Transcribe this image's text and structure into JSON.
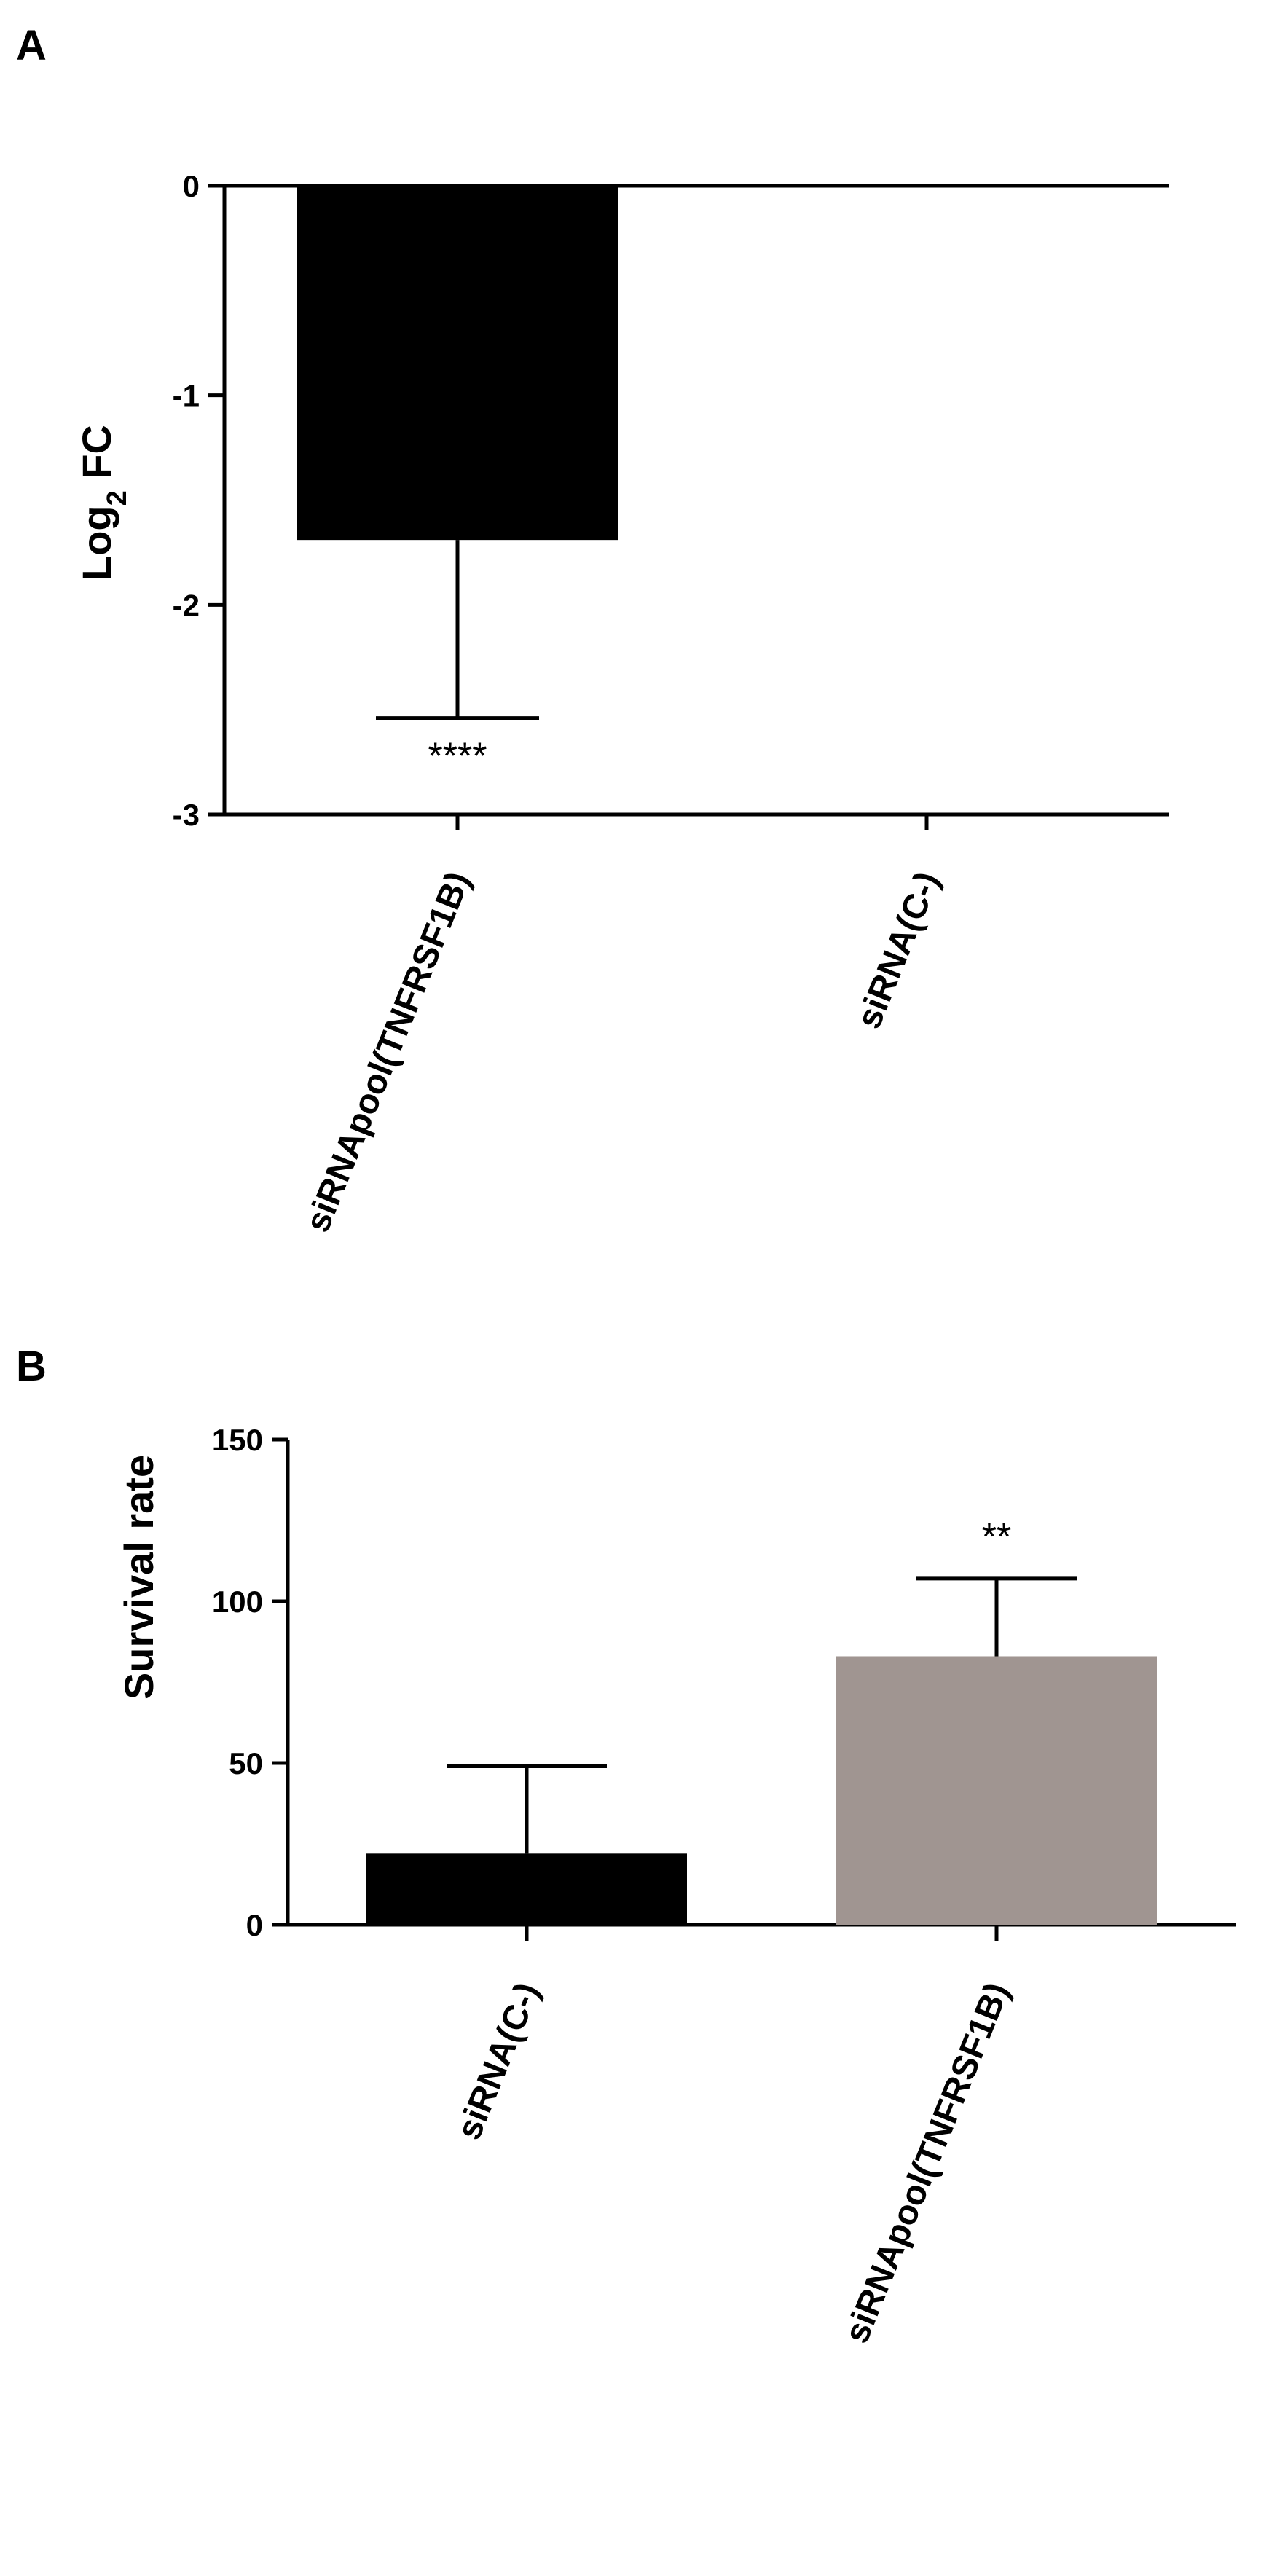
{
  "chart_data": [
    {
      "panel": "A",
      "type": "bar",
      "categories": [
        "siRNApool(TNFRSF1B)",
        "siRNA(C-)"
      ],
      "values": [
        -1.69,
        0
      ],
      "errors": [
        0.85,
        0
      ],
      "annotations": [
        "****",
        ""
      ],
      "bar_colors": [
        "#000000",
        "#000000"
      ],
      "ylabel_main": "Log",
      "ylabel_sub": "2",
      "ylabel_rest": " FC",
      "ylim": [
        -3,
        0
      ],
      "yticks": [
        "0",
        "-1",
        "-2",
        "-3"
      ],
      "ytick_values": [
        0,
        -1,
        -2,
        -3
      ],
      "grid": false
    },
    {
      "panel": "B",
      "type": "bar",
      "categories": [
        "siRNA(C-)",
        "siRNApool(TNFRSF1B)"
      ],
      "values": [
        22,
        83
      ],
      "errors": [
        27,
        24
      ],
      "annotations": [
        "",
        "**"
      ],
      "bar_colors": [
        "#000000",
        "#a09591"
      ],
      "ylabel": "Survival rate",
      "ylim": [
        0,
        150
      ],
      "yticks": [
        "0",
        "50",
        "100",
        "150"
      ],
      "ytick_values": [
        0,
        50,
        100,
        150
      ],
      "grid": false
    }
  ]
}
